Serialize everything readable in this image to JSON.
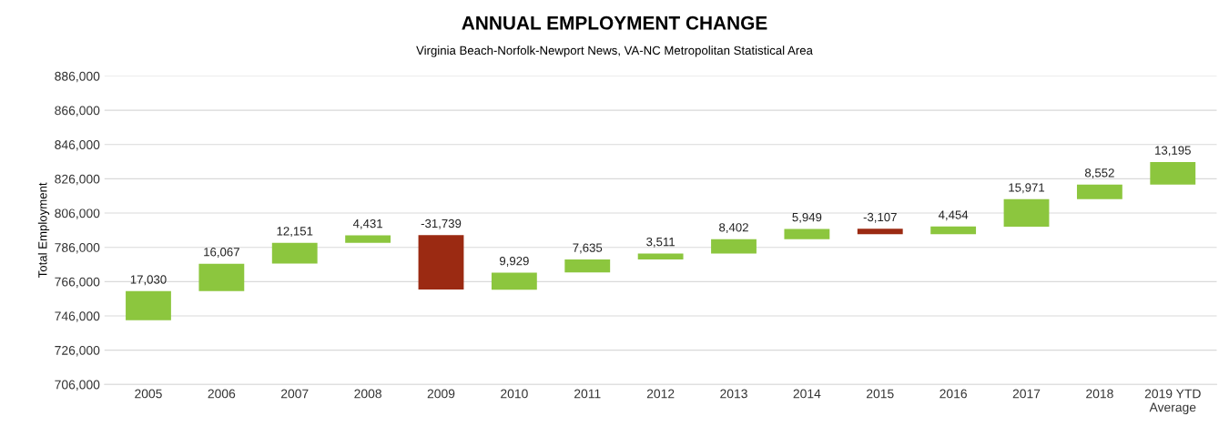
{
  "chart_data": {
    "type": "bar",
    "title": "ANNUAL EMPLOYMENT CHANGE",
    "subtitle": "Virginia Beach-Norfolk-Newport News, VA-NC Metropolitan Statistical Area",
    "ylabel": "Total Employment",
    "categories": [
      "2005",
      "2006",
      "2007",
      "2008",
      "2009",
      "2010",
      "2011",
      "2012",
      "2013",
      "2014",
      "2015",
      "2016",
      "2017",
      "2018",
      "2019 YTD\nAverage"
    ],
    "values": [
      17030,
      16067,
      12151,
      4431,
      -31739,
      9929,
      7635,
      3511,
      8402,
      5949,
      -3107,
      4454,
      15971,
      8552,
      13195
    ],
    "base": [
      743400,
      760400,
      776500,
      788600,
      793100,
      761300,
      771300,
      778900,
      782400,
      790800,
      796800,
      793700,
      798100,
      814100,
      822600
    ],
    "colors": [
      "#8cc63e",
      "#8cc63e",
      "#8cc63e",
      "#8cc63e",
      "#9b2a12",
      "#8cc63e",
      "#8cc63e",
      "#8cc63e",
      "#8cc63e",
      "#8cc63e",
      "#9b2a12",
      "#8cc63e",
      "#8cc63e",
      "#8cc63e",
      "#8cc63e"
    ],
    "value_labels": [
      "17,030",
      "16,067",
      "12,151",
      "4,431",
      "-31,739",
      "9,929",
      "7,635",
      "3,511",
      "8,402",
      "5,949",
      "-3,107",
      "4,454",
      "15,971",
      "8,552",
      "13,195"
    ],
    "ylim": [
      706000,
      886000
    ],
    "yticks": [
      {
        "value": 706000,
        "label": "706,000"
      },
      {
        "value": 726000,
        "label": "726,000"
      },
      {
        "value": 746000,
        "label": "746,000"
      },
      {
        "value": 766000,
        "label": "766,000"
      },
      {
        "value": 786000,
        "label": "786,000"
      },
      {
        "value": 806000,
        "label": "806,000"
      },
      {
        "value": 826000,
        "label": "826,000"
      },
      {
        "value": 846000,
        "label": "846,000"
      },
      {
        "value": 866000,
        "label": "866,000"
      },
      {
        "value": 886000,
        "label": "886,000"
      }
    ],
    "grid": "y"
  }
}
